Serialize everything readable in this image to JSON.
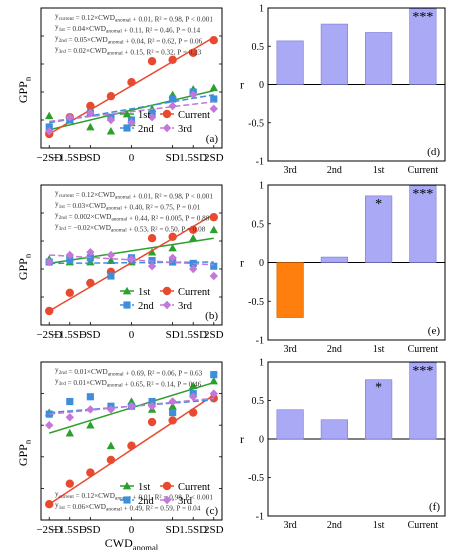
{
  "figure": {
    "x_axis_label": "CWD",
    "x_axis_label_sub": "anomal",
    "y_axis_label_left": "GPP",
    "y_axis_label_left_sub": "n",
    "y_axis_label_right": "r"
  },
  "chart_data": [
    {
      "type": "scatter",
      "panel": "a",
      "panel_label": "(a)",
      "x_categories": [
        "−2SD",
        "−1.5SD",
        "−SD",
        "0",
        "SD",
        "1.5SD",
        "2SD"
      ],
      "xlim": [
        -2.2,
        2.2
      ],
      "ylim": [
        0,
        1
      ],
      "y_ticks": [
        0,
        0.2,
        0.4,
        0.6,
        0.8,
        1
      ],
      "legend": {
        "position": "bottom-right",
        "labels": [
          "1st",
          "Current",
          "2nd",
          "3rd"
        ]
      },
      "equations": [
        {
          "series": "Current",
          "text": "y_current = 0.12×CWD_anomal + 0.01, R² = 0.98, P < 0.001"
        },
        {
          "series": "1st",
          "text": "y_1st = 0.04×CWD_anomal + 0.11, R² = 0.46, P = 0.14"
        },
        {
          "series": "2nd",
          "text": "y_2nd = 0.05×CWD_anomal + 0.04, R² = 0.62, P = 0.06"
        },
        {
          "series": "3rd",
          "text": "y_3rd = 0.02×CWD_anomal + 0.15, R² = 0.32, P = 0.23"
        }
      ],
      "series": [
        {
          "name": "1st",
          "color": "#2ca02c",
          "marker": "triangle",
          "points": [
            [
              -2.0,
              0.23
            ],
            [
              -1.5,
              0.2
            ],
            [
              -1.0,
              0.15
            ],
            [
              -0.5,
              0.12
            ],
            [
              0.0,
              0.18
            ],
            [
              0.5,
              0.28
            ],
            [
              1.0,
              0.38
            ],
            [
              1.5,
              0.42
            ],
            [
              2.0,
              0.43
            ]
          ],
          "fit": [
            [
              -2.0,
              0.13
            ],
            [
              2.0,
              0.41
            ]
          ]
        },
        {
          "name": "Current",
          "color": "#e84a2f",
          "marker": "circle",
          "points": [
            [
              -2.0,
              0.1
            ],
            [
              -1.5,
              0.22
            ],
            [
              -1.0,
              0.3
            ],
            [
              -0.5,
              0.37
            ],
            [
              0.0,
              0.47
            ],
            [
              0.5,
              0.62
            ],
            [
              1.0,
              0.63
            ],
            [
              1.5,
              0.68
            ],
            [
              2.0,
              0.77
            ]
          ],
          "fit": [
            [
              -2.0,
              0.1
            ],
            [
              2.0,
              0.79
            ]
          ]
        },
        {
          "name": "2nd",
          "color": "#3d8fdc",
          "marker": "square",
          "points": [
            [
              -2.0,
              0.15
            ],
            [
              -1.5,
              0.2
            ],
            [
              -1.0,
              0.25
            ],
            [
              -0.5,
              0.22
            ],
            [
              0.0,
              0.2
            ],
            [
              0.5,
              0.25
            ],
            [
              1.0,
              0.35
            ],
            [
              1.5,
              0.4
            ],
            [
              2.0,
              0.35
            ]
          ],
          "fit": [
            [
              -2.0,
              0.18
            ],
            [
              2.0,
              0.38
            ]
          ]
        },
        {
          "name": "3rd",
          "color": "#c278d8",
          "marker": "diamond",
          "points": [
            [
              -2.0,
              0.12
            ],
            [
              -1.5,
              0.22
            ],
            [
              -1.0,
              0.25
            ],
            [
              -0.5,
              0.2
            ],
            [
              0.0,
              0.18
            ],
            [
              0.5,
              0.22
            ],
            [
              1.0,
              0.3
            ],
            [
              1.5,
              0.38
            ],
            [
              2.0,
              0.28
            ]
          ],
          "fit": [
            [
              -2.0,
              0.19
            ],
            [
              2.0,
              0.33
            ]
          ]
        }
      ]
    },
    {
      "type": "bar",
      "panel": "d",
      "panel_label": "(d)",
      "categories": [
        "3rd",
        "2nd",
        "1st",
        "Current"
      ],
      "values": [
        0.57,
        0.79,
        0.68,
        0.99
      ],
      "significance": [
        "",
        "",
        "",
        "***"
      ],
      "ylim": [
        -1,
        1
      ],
      "y_ticks": [
        -1,
        -0.5,
        0,
        0.5,
        1
      ],
      "ylabel": "r"
    },
    {
      "type": "scatter",
      "panel": "b",
      "panel_label": "(b)",
      "x_categories": [
        "−2SD",
        "−1.5SD",
        "−SD",
        "0",
        "SD",
        "1.5SD",
        "2SD"
      ],
      "xlim": [
        -2.2,
        2.2
      ],
      "ylim": [
        0,
        1
      ],
      "y_ticks": [
        0,
        0.2,
        0.4,
        0.6,
        0.8,
        1
      ],
      "legend": {
        "position": "bottom-right",
        "labels": [
          "1st",
          "Current",
          "2nd",
          "3rd"
        ]
      },
      "equations": [
        {
          "series": "Current",
          "text": "y_current = 0.12×CWD_anomal + 0.01, R² = 0.98, P < 0.001"
        },
        {
          "series": "1st",
          "text": "y_1st = 0.03×CWD_anomal + 0.40, R² = 0.75, P = 0.01"
        },
        {
          "series": "2nd",
          "text": "y_2nd = 0.002×CWD_anomal + 0.44, R² = 0.005, P = 0.88"
        },
        {
          "series": "3rd",
          "text": "y_3rd = −0.02×CWD_anomal + 0.53, R² = 0.50, P = 0.08"
        }
      ],
      "series": [
        {
          "name": "1st",
          "color": "#2ca02c",
          "marker": "triangle",
          "points": [
            [
              -2.0,
              0.47
            ],
            [
              -1.5,
              0.45
            ],
            [
              -1.0,
              0.45
            ],
            [
              -0.5,
              0.46
            ],
            [
              0.0,
              0.45
            ],
            [
              0.5,
              0.52
            ],
            [
              1.0,
              0.55
            ],
            [
              1.5,
              0.62
            ],
            [
              2.0,
              0.68
            ]
          ],
          "fit": [
            [
              -2.0,
              0.44
            ],
            [
              2.0,
              0.62
            ]
          ]
        },
        {
          "name": "Current",
          "color": "#e84a2f",
          "marker": "circle",
          "points": [
            [
              -2.0,
              0.1
            ],
            [
              -1.5,
              0.23
            ],
            [
              -1.0,
              0.3
            ],
            [
              -0.5,
              0.38
            ],
            [
              0.0,
              0.47
            ],
            [
              0.5,
              0.62
            ],
            [
              1.0,
              0.63
            ],
            [
              1.5,
              0.68
            ],
            [
              2.0,
              0.77
            ]
          ],
          "fit": [
            [
              -2.0,
              0.1
            ],
            [
              2.0,
              0.79
            ]
          ]
        },
        {
          "name": "2nd",
          "color": "#3d8fdc",
          "marker": "square",
          "points": [
            [
              -2.0,
              0.45
            ],
            [
              -1.5,
              0.47
            ],
            [
              -1.0,
              0.48
            ],
            [
              -0.5,
              0.35
            ],
            [
              0.0,
              0.48
            ],
            [
              0.5,
              0.46
            ],
            [
              1.0,
              0.45
            ],
            [
              1.5,
              0.44
            ],
            [
              2.0,
              0.42
            ]
          ],
          "fit": [
            [
              -2.0,
              0.44
            ],
            [
              2.0,
              0.45
            ]
          ]
        },
        {
          "name": "3rd",
          "color": "#c278d8",
          "marker": "diamond",
          "points": [
            [
              -2.0,
              0.45
            ],
            [
              -1.5,
              0.5
            ],
            [
              -1.0,
              0.52
            ],
            [
              -0.5,
              0.5
            ],
            [
              0.0,
              0.47
            ],
            [
              0.5,
              0.42
            ],
            [
              1.0,
              0.48
            ],
            [
              1.5,
              0.4
            ],
            [
              2.0,
              0.35
            ]
          ],
          "fit": [
            [
              -2.0,
              0.5
            ],
            [
              2.0,
              0.43
            ]
          ]
        }
      ]
    },
    {
      "type": "bar",
      "panel": "e",
      "panel_label": "(e)",
      "categories": [
        "3rd",
        "2nd",
        "1st",
        "Current"
      ],
      "values": [
        -0.71,
        0.07,
        0.86,
        0.99
      ],
      "significance": [
        "",
        "",
        "*",
        "***"
      ],
      "ylim": [
        -1,
        1
      ],
      "y_ticks": [
        -1,
        -0.5,
        0,
        0.5,
        1
      ],
      "ylabel": "r"
    },
    {
      "type": "scatter",
      "panel": "c",
      "panel_label": "(c)",
      "x_categories": [
        "−2SD",
        "−1.5SD",
        "−SD",
        "0",
        "SD",
        "1.5SD",
        "2SD"
      ],
      "xlim": [
        -2.2,
        2.2
      ],
      "ylim": [
        0,
        1
      ],
      "y_ticks": [
        0,
        0.2,
        0.4,
        0.6,
        0.8,
        1
      ],
      "xlabel": "CWD_anomal",
      "legend": {
        "position": "bottom-right",
        "labels": [
          "1st",
          "Current",
          "2nd",
          "3rd"
        ]
      },
      "equations": [
        {
          "series": "2nd",
          "text": "y_2nd = 0.01×CWD_anomal + 0.69, R² = 0.06, P = 0.63"
        },
        {
          "series": "3rd",
          "text": "y_3rd = 0.01×CWD_anomal + 0.65, R² = 0.14, P = 0.46"
        },
        {
          "series": "Current",
          "text": "y_current = 0.12×CWD_anomal + 0.01, R² = 0.98, P < 0.001"
        },
        {
          "series": "1st",
          "text": "y_1st = 0.06×CWD_anomal + 0.49, R² = 0.59, P = 0.04"
        }
      ],
      "series": [
        {
          "name": "1st",
          "color": "#2ca02c",
          "marker": "triangle",
          "points": [
            [
              -2.0,
              0.68
            ],
            [
              -1.5,
              0.55
            ],
            [
              -1.0,
              0.6
            ],
            [
              -0.5,
              0.47
            ],
            [
              0.0,
              0.75
            ],
            [
              0.5,
              0.7
            ],
            [
              1.0,
              0.72
            ],
            [
              1.5,
              0.85
            ],
            [
              2.0,
              0.88
            ]
          ],
          "fit": [
            [
              -2.0,
              0.55
            ],
            [
              2.0,
              0.87
            ]
          ]
        },
        {
          "name": "Current",
          "color": "#e84a2f",
          "marker": "circle",
          "points": [
            [
              -2.0,
              0.1
            ],
            [
              -1.5,
              0.23
            ],
            [
              -1.0,
              0.3
            ],
            [
              -0.5,
              0.38
            ],
            [
              0.0,
              0.47
            ],
            [
              0.5,
              0.62
            ],
            [
              1.0,
              0.63
            ],
            [
              1.5,
              0.68
            ],
            [
              2.0,
              0.77
            ]
          ],
          "fit": [
            [
              -2.0,
              0.1
            ],
            [
              2.0,
              0.79
            ]
          ]
        },
        {
          "name": "2nd",
          "color": "#3d8fdc",
          "marker": "square",
          "points": [
            [
              -2.0,
              0.67
            ],
            [
              -1.5,
              0.75
            ],
            [
              -1.0,
              0.78
            ],
            [
              -0.5,
              0.72
            ],
            [
              0.0,
              0.72
            ],
            [
              0.5,
              0.75
            ],
            [
              1.0,
              0.68
            ],
            [
              1.5,
              0.8
            ],
            [
              2.0,
              0.92
            ]
          ],
          "fit": [
            [
              -2.0,
              0.68
            ],
            [
              2.0,
              0.76
            ]
          ]
        },
        {
          "name": "3rd",
          "color": "#c278d8",
          "marker": "diamond",
          "points": [
            [
              -2.0,
              0.6
            ],
            [
              -1.5,
              0.65
            ],
            [
              -1.0,
              0.7
            ],
            [
              -0.5,
              0.7
            ],
            [
              0.0,
              0.72
            ],
            [
              0.5,
              0.72
            ],
            [
              1.0,
              0.75
            ],
            [
              1.5,
              0.78
            ],
            [
              2.0,
              0.8
            ]
          ],
          "fit": [
            [
              -2.0,
              0.67
            ],
            [
              2.0,
              0.77
            ]
          ]
        }
      ]
    },
    {
      "type": "bar",
      "panel": "f",
      "panel_label": "(f)",
      "categories": [
        "3rd",
        "2nd",
        "1st",
        "Current"
      ],
      "values": [
        0.38,
        0.25,
        0.77,
        0.99
      ],
      "significance": [
        "",
        "",
        "*",
        "***"
      ],
      "ylim": [
        -1,
        1
      ],
      "y_ticks": [
        -1,
        -0.5,
        0,
        0.5,
        1
      ],
      "ylabel": "r"
    }
  ]
}
